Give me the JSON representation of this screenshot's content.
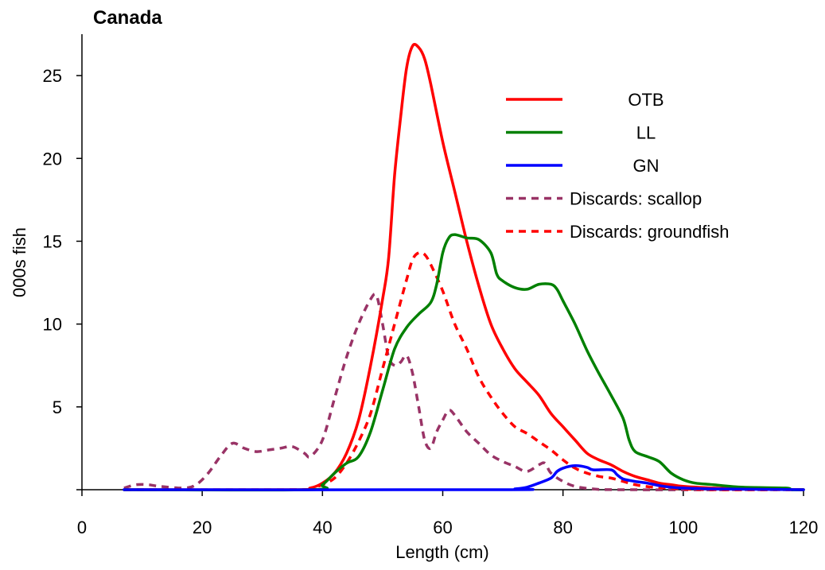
{
  "chart_data": {
    "type": "line",
    "title": "Canada",
    "xlabel": "Length (cm)",
    "ylabel": "000s fish",
    "xlim": [
      0,
      120
    ],
    "ylim": [
      0,
      27.5
    ],
    "xticks": [
      "0",
      "20",
      "40",
      "60",
      "80",
      "100",
      "120"
    ],
    "yticks": [
      "5",
      "10",
      "15",
      "20",
      "25"
    ],
    "grid": false,
    "legend_position": "top-right",
    "series": [
      {
        "name": "OTB",
        "color": "#ff0000",
        "dash": "solid",
        "points": [
          [
            7,
            0
          ],
          [
            35,
            0
          ],
          [
            38,
            0.1
          ],
          [
            40,
            0.4
          ],
          [
            42,
            1.0
          ],
          [
            44,
            2.2
          ],
          [
            46,
            4.2
          ],
          [
            48,
            7.5
          ],
          [
            50,
            11.5
          ],
          [
            51,
            14.0
          ],
          [
            52,
            19.0
          ],
          [
            53,
            22.5
          ],
          [
            54,
            25.5
          ],
          [
            55,
            26.8
          ],
          [
            56,
            26.7
          ],
          [
            57,
            26.0
          ],
          [
            58,
            24.5
          ],
          [
            60,
            21.0
          ],
          [
            62,
            18.0
          ],
          [
            64,
            15.0
          ],
          [
            66,
            12.3
          ],
          [
            68,
            10.0
          ],
          [
            70,
            8.5
          ],
          [
            72,
            7.3
          ],
          [
            74,
            6.5
          ],
          [
            76,
            5.7
          ],
          [
            78,
            4.6
          ],
          [
            80,
            3.8
          ],
          [
            82,
            3.0
          ],
          [
            84,
            2.2
          ],
          [
            86,
            1.8
          ],
          [
            88,
            1.5
          ],
          [
            90,
            1.1
          ],
          [
            92,
            0.8
          ],
          [
            94,
            0.6
          ],
          [
            96,
            0.4
          ],
          [
            98,
            0.3
          ],
          [
            100,
            0.2
          ],
          [
            105,
            0.1
          ],
          [
            110,
            0.05
          ],
          [
            120,
            0
          ]
        ]
      },
      {
        "name": "LL",
        "color": "#008000",
        "dash": "solid",
        "points": [
          [
            7,
            0
          ],
          [
            38,
            0
          ],
          [
            40,
            0.3
          ],
          [
            42,
            1.0
          ],
          [
            44,
            1.6
          ],
          [
            46,
            2.0
          ],
          [
            48,
            3.5
          ],
          [
            50,
            6.0
          ],
          [
            52,
            8.5
          ],
          [
            54,
            9.8
          ],
          [
            56,
            10.6
          ],
          [
            58,
            11.3
          ],
          [
            59,
            12.4
          ],
          [
            60,
            14.3
          ],
          [
            61,
            15.2
          ],
          [
            62,
            15.4
          ],
          [
            64,
            15.2
          ],
          [
            66,
            15.1
          ],
          [
            68,
            14.3
          ],
          [
            69,
            13.0
          ],
          [
            70,
            12.6
          ],
          [
            72,
            12.2
          ],
          [
            74,
            12.1
          ],
          [
            76,
            12.4
          ],
          [
            78,
            12.4
          ],
          [
            79,
            12.1
          ],
          [
            80,
            11.4
          ],
          [
            82,
            10.0
          ],
          [
            84,
            8.4
          ],
          [
            86,
            7.0
          ],
          [
            88,
            5.7
          ],
          [
            90,
            4.3
          ],
          [
            91,
            3.0
          ],
          [
            92,
            2.3
          ],
          [
            94,
            2.0
          ],
          [
            96,
            1.7
          ],
          [
            98,
            1.0
          ],
          [
            100,
            0.6
          ],
          [
            102,
            0.4
          ],
          [
            105,
            0.3
          ],
          [
            110,
            0.15
          ],
          [
            117,
            0.1
          ],
          [
            118,
            0
          ],
          [
            120,
            0
          ]
        ]
      },
      {
        "name": "GN",
        "color": "#0000ff",
        "dash": "solid",
        "points": [
          [
            7,
            0
          ],
          [
            70,
            0
          ],
          [
            72,
            0.05
          ],
          [
            74,
            0.15
          ],
          [
            76,
            0.4
          ],
          [
            78,
            0.7
          ],
          [
            79,
            1.1
          ],
          [
            80,
            1.3
          ],
          [
            82,
            1.45
          ],
          [
            84,
            1.35
          ],
          [
            85,
            1.2
          ],
          [
            88,
            1.2
          ],
          [
            89,
            0.9
          ],
          [
            90,
            0.65
          ],
          [
            92,
            0.5
          ],
          [
            94,
            0.4
          ],
          [
            96,
            0.25
          ],
          [
            98,
            0.15
          ],
          [
            100,
            0.1
          ],
          [
            105,
            0.05
          ],
          [
            120,
            0
          ]
        ]
      },
      {
        "name": "Discards: scallop",
        "color": "#993366",
        "dash": "dashed",
        "points": [
          [
            7,
            0.1
          ],
          [
            9,
            0.3
          ],
          [
            11,
            0.3
          ],
          [
            13,
            0.2
          ],
          [
            17,
            0.1
          ],
          [
            19,
            0.3
          ],
          [
            21,
            1.0
          ],
          [
            23,
            2.0
          ],
          [
            25,
            2.8
          ],
          [
            27,
            2.5
          ],
          [
            29,
            2.3
          ],
          [
            31,
            2.4
          ],
          [
            33,
            2.5
          ],
          [
            35,
            2.6
          ],
          [
            37,
            2.2
          ],
          [
            38,
            2.0
          ],
          [
            40,
            3.0
          ],
          [
            42,
            5.5
          ],
          [
            44,
            8.0
          ],
          [
            46,
            10.0
          ],
          [
            48,
            11.5
          ],
          [
            49,
            11.7
          ],
          [
            50,
            10.0
          ],
          [
            51,
            8.0
          ],
          [
            52,
            7.5
          ],
          [
            53,
            7.7
          ],
          [
            54,
            8.1
          ],
          [
            55,
            7.0
          ],
          [
            56,
            5.0
          ],
          [
            57,
            3.0
          ],
          [
            58,
            2.5
          ],
          [
            59,
            3.5
          ],
          [
            60,
            4.2
          ],
          [
            61,
            4.8
          ],
          [
            62,
            4.5
          ],
          [
            64,
            3.5
          ],
          [
            66,
            2.8
          ],
          [
            68,
            2.1
          ],
          [
            70,
            1.7
          ],
          [
            72,
            1.4
          ],
          [
            74,
            1.1
          ],
          [
            76,
            1.5
          ],
          [
            77,
            1.6
          ],
          [
            78,
            1.0
          ],
          [
            80,
            0.5
          ],
          [
            82,
            0.2
          ],
          [
            85,
            0.05
          ],
          [
            90,
            0
          ],
          [
            120,
            0
          ]
        ]
      },
      {
        "name": "Discards: groundfish",
        "color": "#ff0000",
        "dash": "dashed",
        "points": [
          [
            7,
            0
          ],
          [
            36,
            0
          ],
          [
            38,
            0.1
          ],
          [
            40,
            0.3
          ],
          [
            42,
            0.7
          ],
          [
            44,
            1.6
          ],
          [
            46,
            2.9
          ],
          [
            48,
            4.6
          ],
          [
            50,
            7.3
          ],
          [
            52,
            10.0
          ],
          [
            54,
            12.7
          ],
          [
            55,
            13.9
          ],
          [
            56,
            14.3
          ],
          [
            57,
            14.2
          ],
          [
            58,
            13.6
          ],
          [
            60,
            12.0
          ],
          [
            62,
            10.0
          ],
          [
            64,
            8.5
          ],
          [
            66,
            6.8
          ],
          [
            68,
            5.6
          ],
          [
            70,
            4.6
          ],
          [
            72,
            3.8
          ],
          [
            74,
            3.4
          ],
          [
            76,
            2.9
          ],
          [
            78,
            2.4
          ],
          [
            80,
            1.8
          ],
          [
            82,
            1.3
          ],
          [
            84,
            1.0
          ],
          [
            86,
            0.8
          ],
          [
            88,
            0.7
          ],
          [
            90,
            0.5
          ],
          [
            92,
            0.3
          ],
          [
            95,
            0.15
          ],
          [
            100,
            0.05
          ],
          [
            105,
            0
          ],
          [
            120,
            0
          ]
        ]
      }
    ]
  }
}
